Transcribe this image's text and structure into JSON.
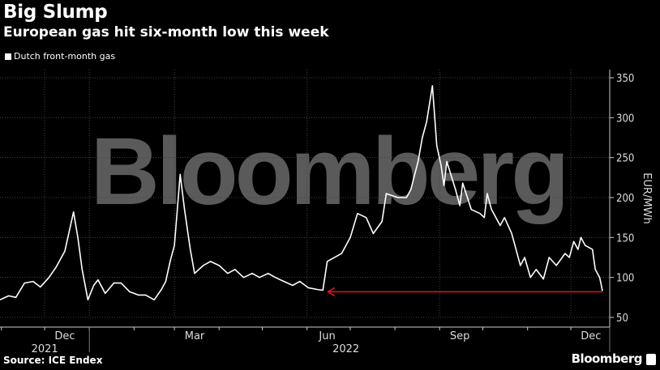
{
  "header": {
    "title": "Big Slump",
    "subtitle": "European gas hit six-month low this week"
  },
  "footer": {
    "source": "Source: ICE Endex",
    "brand": "Bloomberg"
  },
  "chart_data": {
    "type": "line",
    "title": "Big Slump",
    "subtitle": "European gas hit six-month low this week",
    "ylabel": "EUR/MWh",
    "xlabel": "",
    "ylim": [
      50,
      350
    ],
    "yticks": [
      50,
      100,
      150,
      200,
      250,
      300,
      350
    ],
    "xlim": [
      "2021-10-31",
      "2022-12-28"
    ],
    "xticks": [
      {
        "label": "Dec",
        "date": "2021-12-15"
      },
      {
        "label": "Mar",
        "date": "2022-03-15"
      },
      {
        "label": "Jun",
        "date": "2022-06-15"
      },
      {
        "label": "Sep",
        "date": "2022-09-15"
      },
      {
        "label": "Dec",
        "date": "2022-12-15"
      }
    ],
    "year_labels": [
      {
        "label": "2021",
        "date": "2021-12-01"
      },
      {
        "label": "2022",
        "date": "2022-06-28"
      }
    ],
    "grid": true,
    "legend": {
      "position": "top-left",
      "entries": [
        "Dutch front-month gas"
      ]
    },
    "watermark": "Bloomberg",
    "annotation": {
      "type": "arrow",
      "color": "#e0141e",
      "value": 82,
      "from": "2022-12-23",
      "to": "2022-06-15"
    },
    "series": [
      {
        "name": "Dutch front-month gas",
        "color": "#ffffff",
        "points": [
          [
            "2021-10-31",
            72
          ],
          [
            "2021-11-06",
            77
          ],
          [
            "2021-11-11",
            75
          ],
          [
            "2021-11-17",
            93
          ],
          [
            "2021-11-23",
            95
          ],
          [
            "2021-11-28",
            88
          ],
          [
            "2021-12-04",
            100
          ],
          [
            "2021-12-09",
            113
          ],
          [
            "2021-12-15",
            133
          ],
          [
            "2021-12-21",
            182
          ],
          [
            "2021-12-24",
            150
          ],
          [
            "2021-12-27",
            110
          ],
          [
            "2021-12-31",
            72
          ],
          [
            "2022-01-04",
            90
          ],
          [
            "2022-01-07",
            97
          ],
          [
            "2022-01-12",
            80
          ],
          [
            "2022-01-18",
            93
          ],
          [
            "2022-01-23",
            93
          ],
          [
            "2022-01-29",
            82
          ],
          [
            "2022-02-04",
            78
          ],
          [
            "2022-02-09",
            78
          ],
          [
            "2022-02-15",
            72
          ],
          [
            "2022-02-20",
            85
          ],
          [
            "2022-02-23",
            95
          ],
          [
            "2022-02-26",
            120
          ],
          [
            "2022-03-01",
            140
          ],
          [
            "2022-03-05",
            229
          ],
          [
            "2022-03-08",
            185
          ],
          [
            "2022-03-12",
            135
          ],
          [
            "2022-03-15",
            105
          ],
          [
            "2022-03-21",
            115
          ],
          [
            "2022-03-26",
            120
          ],
          [
            "2022-04-01",
            115
          ],
          [
            "2022-04-07",
            105
          ],
          [
            "2022-04-12",
            110
          ],
          [
            "2022-04-18",
            100
          ],
          [
            "2022-04-24",
            105
          ],
          [
            "2022-04-29",
            100
          ],
          [
            "2022-05-05",
            105
          ],
          [
            "2022-05-10",
            100
          ],
          [
            "2022-05-16",
            95
          ],
          [
            "2022-05-22",
            90
          ],
          [
            "2022-05-27",
            95
          ],
          [
            "2022-06-02",
            87
          ],
          [
            "2022-06-08",
            85
          ],
          [
            "2022-06-12",
            84
          ],
          [
            "2022-06-15",
            120
          ],
          [
            "2022-06-25",
            130
          ],
          [
            "2022-07-01",
            150
          ],
          [
            "2022-07-06",
            180
          ],
          [
            "2022-07-12",
            175
          ],
          [
            "2022-07-17",
            155
          ],
          [
            "2022-07-23",
            170
          ],
          [
            "2022-07-26",
            205
          ],
          [
            "2022-08-03",
            200
          ],
          [
            "2022-08-09",
            200
          ],
          [
            "2022-08-12",
            210
          ],
          [
            "2022-08-17",
            245
          ],
          [
            "2022-08-20",
            275
          ],
          [
            "2022-08-23",
            295
          ],
          [
            "2022-08-27",
            340
          ],
          [
            "2022-08-30",
            265
          ],
          [
            "2022-09-02",
            240
          ],
          [
            "2022-09-04",
            215
          ],
          [
            "2022-09-06",
            245
          ],
          [
            "2022-09-12",
            210
          ],
          [
            "2022-09-15",
            190
          ],
          [
            "2022-09-17",
            218
          ],
          [
            "2022-09-23",
            185
          ],
          [
            "2022-09-29",
            180
          ],
          [
            "2022-10-02",
            175
          ],
          [
            "2022-10-04",
            205
          ],
          [
            "2022-10-07",
            185
          ],
          [
            "2022-10-13",
            165
          ],
          [
            "2022-10-16",
            175
          ],
          [
            "2022-10-21",
            155
          ],
          [
            "2022-10-27",
            115
          ],
          [
            "2022-10-30",
            125
          ],
          [
            "2022-11-03",
            100
          ],
          [
            "2022-11-07",
            110
          ],
          [
            "2022-11-12",
            98
          ],
          [
            "2022-11-16",
            125
          ],
          [
            "2022-11-21",
            115
          ],
          [
            "2022-11-27",
            130
          ],
          [
            "2022-11-30",
            125
          ],
          [
            "2022-12-03",
            145
          ],
          [
            "2022-12-06",
            135
          ],
          [
            "2022-12-08",
            150
          ],
          [
            "2022-12-11",
            140
          ],
          [
            "2022-12-16",
            135
          ],
          [
            "2022-12-18",
            110
          ],
          [
            "2022-12-21",
            100
          ],
          [
            "2022-12-23",
            83
          ]
        ]
      }
    ]
  }
}
